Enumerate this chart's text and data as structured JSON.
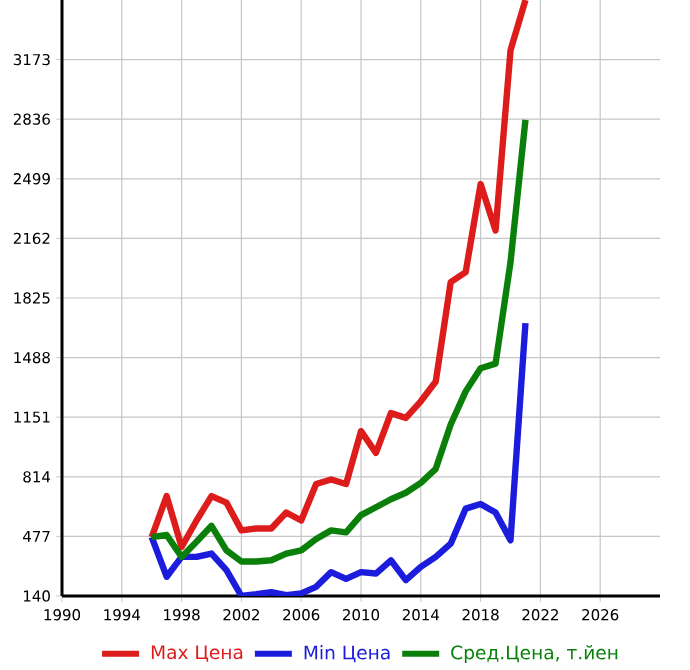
{
  "chart_data": {
    "type": "line",
    "x": [
      1996,
      1997,
      1998,
      1999,
      2000,
      2001,
      2002,
      2003,
      2004,
      2005,
      2006,
      2007,
      2008,
      2009,
      2010,
      2011,
      2012,
      2013,
      2014,
      2015,
      2016,
      2017,
      2018,
      2019,
      2020,
      2021
    ],
    "series": [
      {
        "name": "Max Цена",
        "color": "#dd1c1c",
        "values": [
          473,
          705,
          417,
          567,
          705,
          668,
          511,
          522,
          522,
          612,
          567,
          773,
          799,
          773,
          1072,
          949,
          1174,
          1147,
          1241,
          1353,
          1915,
          1971,
          2469,
          2207,
          3225,
          3510
        ]
      },
      {
        "name": "Min Цена",
        "color": "#1c1cdd",
        "values": [
          473,
          249,
          361,
          361,
          380,
          286,
          140,
          150,
          162,
          145,
          155,
          192,
          275,
          237,
          275,
          267,
          342,
          230,
          305,
          361,
          436,
          634,
          660,
          612,
          455,
          1683
        ]
      },
      {
        "name": "Сред.Цена, т.йен",
        "color": "#0a800a",
        "values": [
          473,
          485,
          361,
          447,
          537,
          398,
          335,
          335,
          342,
          380,
          398,
          462,
          511,
          500,
          597,
          642,
          687,
          724,
          780,
          859,
          1110,
          1297,
          1428,
          1454,
          2027,
          2832
        ]
      }
    ],
    "xlim": [
      1990,
      2030
    ],
    "xticks": [
      1990,
      1994,
      1998,
      2002,
      2006,
      2010,
      2014,
      2018,
      2022,
      2026
    ],
    "ylim": [
      140,
      3510
    ],
    "yticks": [
      140,
      477,
      814,
      1151,
      1488,
      1825,
      2162,
      2499,
      2836,
      3173
    ],
    "grid": true,
    "legend": "bottom",
    "marker": "none",
    "line_style": "solid"
  }
}
